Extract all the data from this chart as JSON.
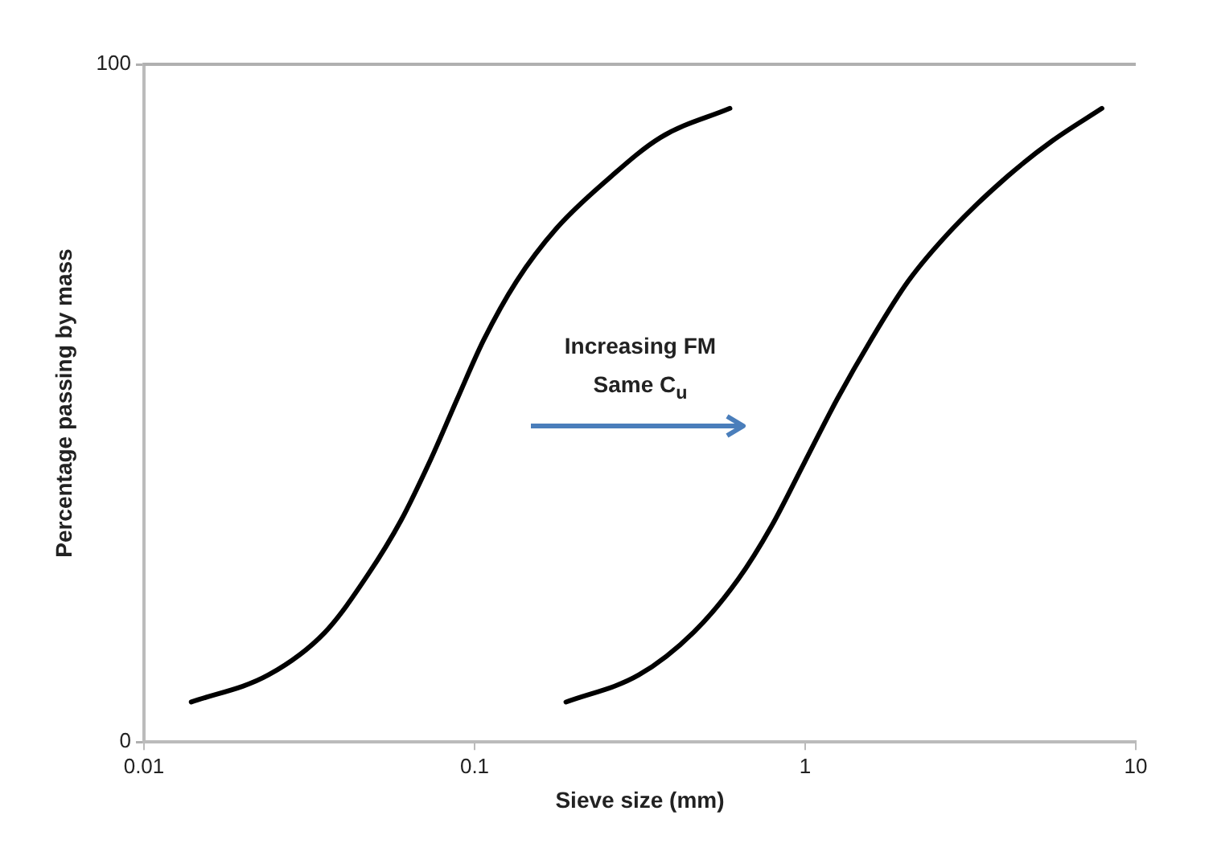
{
  "chart_data": {
    "type": "line",
    "xlabel": "Sieve size (mm)",
    "ylabel": "Percentage passing by mass",
    "log": "x",
    "xlim": [
      0.01,
      10
    ],
    "xticks": [
      0.01,
      0.1,
      1,
      10
    ],
    "ylim": [
      0,
      100
    ],
    "yticks": [
      0,
      100
    ],
    "legend": false,
    "marker": "none",
    "annotations": [
      "Increasing FM",
      "Same C$_{u}$"
    ],
    "series": [
      {
        "color": "#000000",
        "x": [
          0.0139,
          0.0238,
          0.0353,
          0.0476,
          0.0599,
          0.0729,
          0.0886,
          0.1065,
          0.134,
          0.177,
          0.25,
          0.365,
          0.592
        ],
        "values": [
          5.9,
          9.9,
          16.2,
          24.7,
          32.7,
          41.2,
          50.6,
          59.3,
          68.0,
          75.8,
          82.8,
          89.2,
          93.5
        ]
      },
      {
        "color": "#000000",
        "x": [
          0.189,
          0.314,
          0.46,
          0.627,
          0.79,
          0.994,
          1.25,
          1.58,
          2.05,
          2.8,
          4.1,
          5.59,
          7.9
        ],
        "values": [
          5.9,
          9.9,
          16.2,
          24.0,
          31.8,
          41.2,
          50.6,
          59.3,
          68.0,
          75.8,
          83.5,
          88.7,
          93.5
        ]
      }
    ]
  }
}
